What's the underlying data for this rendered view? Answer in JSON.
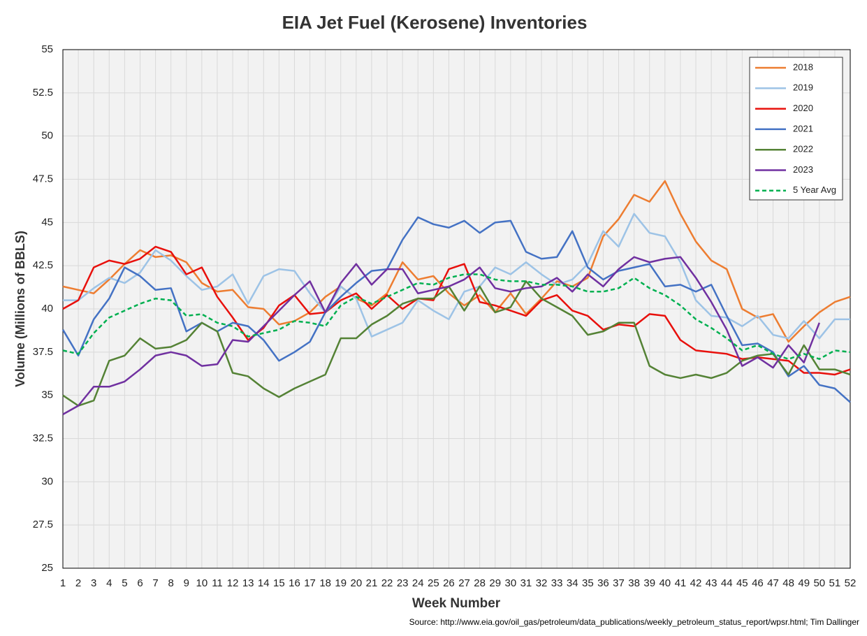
{
  "chart_data": {
    "type": "line",
    "title": "EIA Jet Fuel (Kerosene) Inventories",
    "x_label": "Week Number",
    "y_label": "Volume (Millions of BBLS)",
    "source": "Source: http://www.eia.gov/oil_gas/petroleum/data_publications/weekly_petroleum_status_report/wpsr.html; Tim Dallinger",
    "x": [
      1,
      2,
      3,
      4,
      5,
      6,
      7,
      8,
      9,
      10,
      11,
      12,
      13,
      14,
      15,
      16,
      17,
      18,
      19,
      20,
      21,
      22,
      23,
      24,
      25,
      26,
      27,
      28,
      29,
      30,
      31,
      32,
      33,
      34,
      35,
      36,
      37,
      38,
      39,
      40,
      41,
      42,
      43,
      44,
      45,
      46,
      47,
      48,
      49,
      50,
      51,
      52
    ],
    "xlim": [
      1,
      52
    ],
    "ylim": [
      25,
      55
    ],
    "yticks": [
      25,
      27.5,
      30,
      32.5,
      35,
      37.5,
      40,
      42.5,
      45,
      47.5,
      50,
      52.5,
      55
    ],
    "grid": true,
    "legend": "upper right",
    "series": [
      {
        "name": "2018",
        "color": "#ed7d31",
        "values": [
          41.3,
          41.1,
          40.9,
          41.7,
          42.6,
          43.4,
          43.0,
          43.1,
          42.7,
          41.5,
          41.0,
          41.1,
          40.1,
          40.0,
          39.1,
          39.3,
          39.8,
          40.7,
          41.3,
          40.6,
          40.2,
          40.9,
          42.7,
          41.7,
          41.9,
          40.9,
          40.2,
          40.8,
          39.8,
          40.9,
          39.7,
          40.6,
          41.6,
          41.3,
          41.8,
          44.2,
          45.2,
          46.6,
          46.2,
          47.4,
          45.5,
          43.9,
          42.8,
          42.3,
          40.0,
          39.5,
          39.7,
          38.1,
          39.0,
          39.8,
          40.4,
          40.7
        ]
      },
      {
        "name": "2019",
        "color": "#9dc3e6",
        "values": [
          40.5,
          40.5,
          41.2,
          41.8,
          41.5,
          42.1,
          43.4,
          42.8,
          41.9,
          41.1,
          41.3,
          42.0,
          40.3,
          41.9,
          42.3,
          42.2,
          40.9,
          39.8,
          41.3,
          40.6,
          38.4,
          38.8,
          39.2,
          40.5,
          39.9,
          39.4,
          41.0,
          41.3,
          42.4,
          42.0,
          42.7,
          42.0,
          41.4,
          41.7,
          42.6,
          44.5,
          43.6,
          45.5,
          44.4,
          44.2,
          42.7,
          40.5,
          39.6,
          39.5,
          39.0,
          39.6,
          38.5,
          38.3,
          39.3,
          38.3,
          39.4,
          39.4
        ]
      },
      {
        "name": "2020",
        "color": "#e8100c",
        "values": [
          40.0,
          40.5,
          42.4,
          42.8,
          42.6,
          42.9,
          43.6,
          43.3,
          42.0,
          42.4,
          40.7,
          39.5,
          38.2,
          38.9,
          40.2,
          40.8,
          39.7,
          39.8,
          40.5,
          40.9,
          40.0,
          40.8,
          40.0,
          40.6,
          40.5,
          42.3,
          42.6,
          40.4,
          40.2,
          39.9,
          39.6,
          40.5,
          40.8,
          39.9,
          39.6,
          38.8,
          39.1,
          39.0,
          39.7,
          39.6,
          38.2,
          37.6,
          37.5,
          37.4,
          37.1,
          37.2,
          37.1,
          37.0,
          36.3,
          36.3,
          36.2,
          36.5
        ]
      },
      {
        "name": "2021",
        "color": "#4472c4",
        "values": [
          38.8,
          37.3,
          39.4,
          40.6,
          42.4,
          41.9,
          41.1,
          41.2,
          38.7,
          39.2,
          38.7,
          39.2,
          39.0,
          38.2,
          37.0,
          37.5,
          38.1,
          39.8,
          40.7,
          41.5,
          42.2,
          42.3,
          44.0,
          45.3,
          44.9,
          44.7,
          45.1,
          44.4,
          45.0,
          45.1,
          43.3,
          42.9,
          43.0,
          44.5,
          42.4,
          41.7,
          42.2,
          42.4,
          42.6,
          41.3,
          41.4,
          41.0,
          41.4,
          39.6,
          37.9,
          38.0,
          37.5,
          36.1,
          36.7,
          35.6,
          35.4,
          34.6
        ]
      },
      {
        "name": "2022",
        "color": "#548235",
        "values": [
          35.0,
          34.4,
          34.7,
          37.0,
          37.3,
          38.3,
          37.7,
          37.8,
          38.2,
          39.2,
          38.7,
          36.3,
          36.1,
          35.4,
          34.9,
          35.4,
          35.8,
          36.2,
          38.3,
          38.3,
          39.1,
          39.6,
          40.3,
          40.6,
          40.6,
          41.3,
          39.9,
          41.3,
          39.8,
          40.1,
          41.6,
          40.6,
          40.1,
          39.6,
          38.5,
          38.7,
          39.2,
          39.2,
          36.7,
          36.2,
          36.0,
          36.2,
          36.0,
          36.3,
          37.0,
          37.3,
          37.4,
          36.2,
          37.9,
          36.5,
          36.5,
          36.2
        ]
      },
      {
        "name": "2023",
        "color": "#7030a0",
        "values": [
          33.9,
          34.4,
          35.5,
          35.5,
          35.8,
          36.5,
          37.3,
          37.5,
          37.3,
          36.7,
          36.8,
          38.2,
          38.1,
          39.0,
          39.9,
          40.8,
          41.6,
          39.8,
          41.5,
          42.6,
          41.4,
          42.3,
          42.3,
          40.9,
          41.1,
          41.3,
          41.7,
          42.4,
          41.2,
          41.0,
          41.2,
          41.3,
          41.8,
          41.0,
          42.0,
          41.3,
          42.3,
          43.0,
          42.7,
          42.9,
          43.0,
          41.8,
          40.4,
          38.8,
          36.7,
          37.2,
          36.6,
          37.9,
          36.9,
          39.2,
          null,
          null
        ]
      },
      {
        "name": "5 Year Avg",
        "color": "#00b050",
        "dashed": true,
        "values": [
          37.6,
          37.4,
          38.6,
          39.5,
          39.9,
          40.3,
          40.6,
          40.5,
          39.6,
          39.7,
          39.2,
          39.0,
          38.4,
          38.6,
          38.8,
          39.3,
          39.2,
          39.0,
          40.2,
          40.7,
          40.3,
          40.7,
          41.1,
          41.5,
          41.4,
          41.8,
          42.0,
          42.0,
          41.7,
          41.6,
          41.6,
          41.4,
          41.4,
          41.3,
          41.0,
          41.0,
          41.2,
          41.8,
          41.2,
          40.8,
          40.2,
          39.4,
          38.9,
          38.3,
          37.6,
          37.9,
          37.4,
          37.1,
          37.4,
          37.1,
          37.6,
          37.5
        ]
      }
    ]
  }
}
